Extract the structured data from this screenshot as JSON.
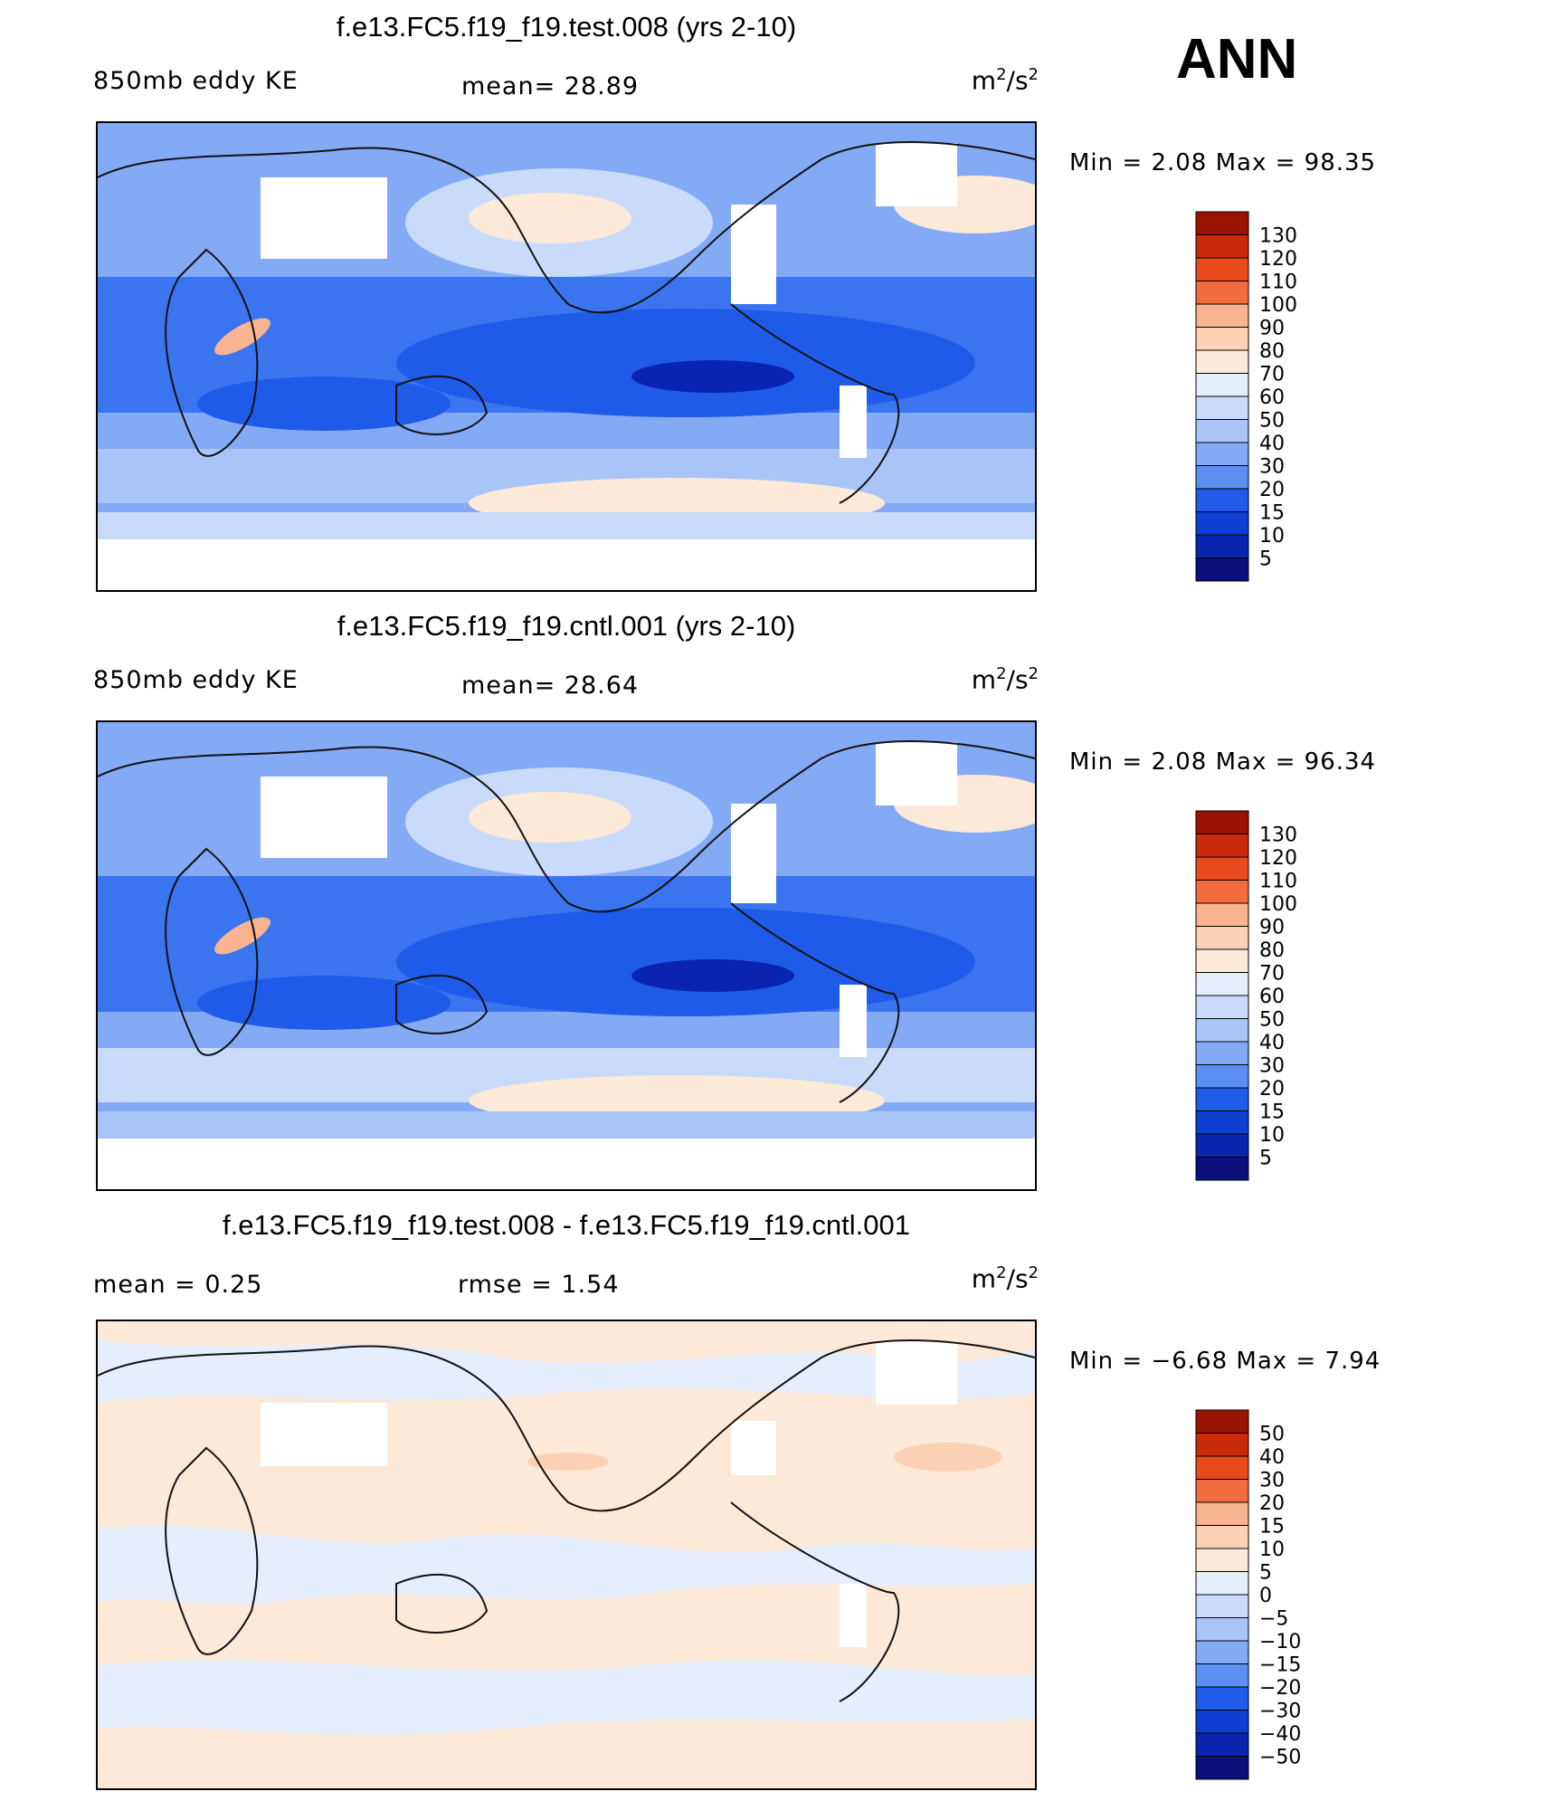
{
  "season": "ANN",
  "palettes": {
    "absolute": [
      "#0a0f7a",
      "#0a24b0",
      "#0f3fd2",
      "#1e5be8",
      "#3a75ef",
      "#5b8ff4",
      "#84aaf6",
      "#a9c5f8",
      "#c9dbfa",
      "#e6eefb",
      "#fde9d8",
      "#fbd2b6",
      "#f8b391",
      "#f6936f",
      "#f26c3f",
      "#e84a1c",
      "#c92b0a",
      "#9a1202"
    ],
    "difference": [
      "#0a0f7a",
      "#0a24b0",
      "#0f3fd2",
      "#1e5be8",
      "#3a75ef",
      "#5b8ff4",
      "#84aaf6",
      "#a9c5f8",
      "#c9dbfa",
      "#e6eefb",
      "#fde9d8",
      "#fbd2b6",
      "#f8b391",
      "#f6936f",
      "#f26c3f",
      "#e84a1c",
      "#c92b0a",
      "#9a1202"
    ]
  },
  "panels": [
    {
      "title": "f.e13.FC5.f19_f19.test.008 (yrs 2-10)",
      "field_label": "850mb eddy KE",
      "stat_text": "mean=   28.89",
      "units_base": "m",
      "units_mid": "/s",
      "units_exp": "2",
      "minmax_text": "Min =    2.08 Max =   98.35",
      "levels": [
        "5",
        "10",
        "15",
        "20",
        "30",
        "40",
        "50",
        "60",
        "70",
        "80",
        "90",
        "100",
        "110",
        "120",
        "130"
      ],
      "palette": "absolute"
    },
    {
      "title": "f.e13.FC5.f19_f19.cntl.001 (yrs 2-10)",
      "field_label": "850mb eddy KE",
      "stat_text": "mean=   28.64",
      "units_base": "m",
      "units_mid": "/s",
      "units_exp": "2",
      "minmax_text": "Min =    2.08 Max =   96.34",
      "levels": [
        "5",
        "10",
        "15",
        "20",
        "30",
        "40",
        "50",
        "60",
        "70",
        "80",
        "90",
        "100",
        "110",
        "120",
        "130"
      ],
      "palette": "absolute"
    },
    {
      "title": "f.e13.FC5.f19_f19.test.008 - f.e13.FC5.f19_f19.cntl.001",
      "field_label": "mean =    0.25",
      "stat_text": "rmse =    1.54",
      "units_base": "m",
      "units_mid": "/s",
      "units_exp": "2",
      "minmax_text": "Min =  −6.68 Max =    7.94",
      "levels": [
        "−50",
        "−40",
        "−30",
        "−20",
        "−15",
        "−10",
        "−5",
        "0",
        "5",
        "10",
        "15",
        "20",
        "30",
        "40",
        "50"
      ],
      "palette": "difference"
    }
  ],
  "chart_data": [
    {
      "type": "heatmap",
      "title": "f.e13.FC5.f19_f19.test.008 (yrs 2-10)",
      "variable": "850mb eddy KE",
      "units": "m2/s2",
      "season": "ANN",
      "mean": 28.89,
      "min": 2.08,
      "max": 98.35,
      "contour_levels": [
        5,
        10,
        15,
        20,
        30,
        40,
        50,
        60,
        70,
        80,
        90,
        100,
        110,
        120,
        130
      ],
      "projection": "cylindrical equidistant, centered on Pacific"
    },
    {
      "type": "heatmap",
      "title": "f.e13.FC5.f19_f19.cntl.001 (yrs 2-10)",
      "variable": "850mb eddy KE",
      "units": "m2/s2",
      "season": "ANN",
      "mean": 28.64,
      "min": 2.08,
      "max": 96.34,
      "contour_levels": [
        5,
        10,
        15,
        20,
        30,
        40,
        50,
        60,
        70,
        80,
        90,
        100,
        110,
        120,
        130
      ],
      "projection": "cylindrical equidistant, centered on Pacific"
    },
    {
      "type": "heatmap",
      "title": "f.e13.FC5.f19_f19.test.008 - f.e13.FC5.f19_f19.cntl.001",
      "variable": "850mb eddy KE difference",
      "units": "m2/s2",
      "season": "ANN",
      "mean": 0.25,
      "rmse": 1.54,
      "min": -6.68,
      "max": 7.94,
      "contour_levels": [
        -50,
        -40,
        -30,
        -20,
        -15,
        -10,
        -5,
        0,
        5,
        10,
        15,
        20,
        30,
        40,
        50
      ],
      "projection": "cylindrical equidistant, centered on Pacific"
    }
  ]
}
